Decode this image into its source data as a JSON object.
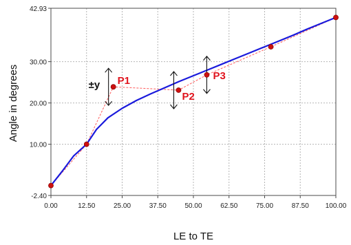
{
  "chart_data": {
    "type": "line",
    "title": "",
    "xlabel": "LE to TE",
    "ylabel": "Angle in degrees",
    "xlim": [
      0,
      100
    ],
    "ylim": [
      -2.4,
      42.93
    ],
    "x_ticks": [
      "0.00",
      "12.50",
      "25.00",
      "37.50",
      "50.00",
      "62.50",
      "75.00",
      "87.50",
      "100.00"
    ],
    "y_ticks": [
      "-2.40",
      "10.00",
      "20.00",
      "30.00",
      "42.93"
    ],
    "x_tick_values": [
      0,
      12.5,
      25,
      37.5,
      50,
      62.5,
      75,
      87.5,
      100
    ],
    "y_tick_values": [
      -2.4,
      10,
      20,
      30,
      42.93
    ],
    "grid": true,
    "colors": {
      "curve": "#1a1adc",
      "control": "#ff5a5a",
      "point": "#cc1010",
      "grid": "#b4b4b4"
    },
    "series": [
      {
        "kind": "curve",
        "x": [
          0,
          4,
          8,
          12.5,
          16,
          20,
          25,
          30,
          35,
          40,
          45,
          50,
          55,
          60,
          65,
          70,
          75,
          80,
          85,
          90,
          95,
          100
        ],
        "y": [
          0,
          3.5,
          7.2,
          10.0,
          13.6,
          16.4,
          18.7,
          20.6,
          22.2,
          23.7,
          25.2,
          26.6,
          28.0,
          29.4,
          30.8,
          32.2,
          33.6,
          35.0,
          36.4,
          37.9,
          39.3,
          40.7
        ]
      },
      {
        "kind": "control-polygon",
        "x": [
          0,
          12.5,
          21.9,
          44.8,
          54.7,
          77.2,
          100
        ],
        "y": [
          0,
          10.0,
          23.9,
          23.1,
          26.8,
          33.6,
          40.7
        ]
      }
    ],
    "annotations": [
      {
        "label": "P1",
        "x": 21.9,
        "y": 23.9
      },
      {
        "label": "P2",
        "x": 44.8,
        "y": 23.1
      },
      {
        "label": "P3",
        "x": 54.7,
        "y": 26.8
      }
    ],
    "offset_label": "±y"
  }
}
